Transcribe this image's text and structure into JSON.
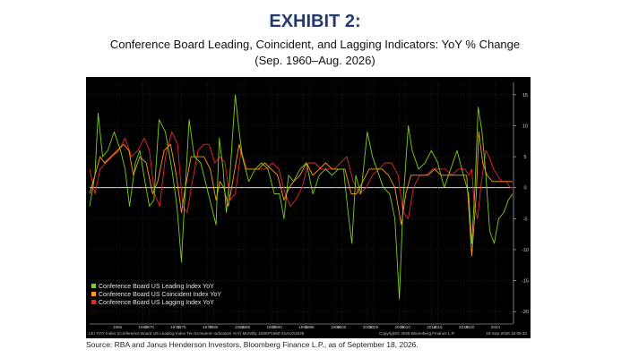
{
  "header": {
    "exhibit": "EXHIBIT 2:",
    "title": "Conference Board Leading, Coincident, and Lagging Indicators: YoY % Change",
    "subtitle": "(Sep. 1960–Aug. 2026)"
  },
  "footer": {
    "source": "Source: RBA and Janus Henderson Investors, Bloomberg Finance L.P., as of September 18, 2026.",
    "bloomberg_line": "LEI YOY Index (Conference Board US Leading Index Ten Economic Indicators YoY) Monthly 18SEP1960-31AUG2026",
    "copyright": "Copyright© 2026 Bloomberg Finance L.P.",
    "timestamp": "18-Sep-2026 16:09:32"
  },
  "colors": {
    "background": "#000000",
    "leading": "#7ccf1a",
    "coincident": "#ff9a1e",
    "lagging": "#e8252c",
    "zero_line": "#ffffff",
    "grid": "#3a3a3a",
    "axis_text": "#cfcfcf",
    "exhibit_title": "#243a6e"
  },
  "chart_data": {
    "type": "line",
    "title": "Conference Board Leading, Coincident, and Lagging Indicators: YoY % Change",
    "subtitle": "(Sep. 1960–Aug. 2026)",
    "xlabel": "",
    "ylabel": "",
    "xlim": [
      1960.67,
      2026.67
    ],
    "ylim": [
      -22,
      17
    ],
    "x_ticks": [
      "1965",
      "1969",
      "1970",
      "1974",
      "1975",
      "1979",
      "1980",
      "1984",
      "1985",
      "1989",
      "1990",
      "1994",
      "1995",
      "1999",
      "2000",
      "2004",
      "2005",
      "2009",
      "2010",
      "2014",
      "2015",
      "2019",
      "2020",
      "2024"
    ],
    "y_ticks": [
      15,
      10,
      5,
      0,
      -5,
      -10,
      -15,
      -20
    ],
    "grid": true,
    "legend_position": "bottom-left",
    "series": [
      {
        "name": "Conference Board US Leading Index YoY",
        "color": "#7ccf1a",
        "points": [
          [
            1960.67,
            -3
          ],
          [
            1961.5,
            2
          ],
          [
            1962.0,
            12
          ],
          [
            1962.7,
            5
          ],
          [
            1963.5,
            6
          ],
          [
            1964.5,
            9
          ],
          [
            1965.5,
            6
          ],
          [
            1966.2,
            3
          ],
          [
            1966.9,
            -3
          ],
          [
            1967.8,
            4
          ],
          [
            1968.5,
            6
          ],
          [
            1969.3,
            1
          ],
          [
            1970.0,
            -3
          ],
          [
            1970.7,
            -2
          ],
          [
            1971.5,
            11
          ],
          [
            1972.5,
            9
          ],
          [
            1973.5,
            3
          ],
          [
            1974.3,
            -3
          ],
          [
            1975.0,
            -12
          ],
          [
            1975.5,
            -2
          ],
          [
            1976.2,
            11
          ],
          [
            1977.0,
            5
          ],
          [
            1978.0,
            4
          ],
          [
            1979.2,
            -1
          ],
          [
            1980.4,
            -6
          ],
          [
            1980.9,
            8
          ],
          [
            1981.5,
            3
          ],
          [
            1982.0,
            -4
          ],
          [
            1982.5,
            1
          ],
          [
            1983.4,
            15
          ],
          [
            1983.9,
            10
          ],
          [
            1984.5,
            5
          ],
          [
            1985.5,
            1
          ],
          [
            1986.5,
            3
          ],
          [
            1987.5,
            4
          ],
          [
            1988.5,
            3
          ],
          [
            1989.5,
            -1
          ],
          [
            1990.3,
            -1
          ],
          [
            1991.0,
            -5
          ],
          [
            1991.7,
            2
          ],
          [
            1992.5,
            1
          ],
          [
            1993.5,
            3
          ],
          [
            1994.5,
            4
          ],
          [
            1995.5,
            -1
          ],
          [
            1996.5,
            2
          ],
          [
            1997.5,
            3
          ],
          [
            1998.5,
            2
          ],
          [
            1999.5,
            3
          ],
          [
            2000.3,
            3
          ],
          [
            2001.0,
            -4
          ],
          [
            2001.6,
            -9
          ],
          [
            2002.2,
            2
          ],
          [
            2003.0,
            -1
          ],
          [
            2004.0,
            9
          ],
          [
            2004.8,
            5
          ],
          [
            2005.5,
            3
          ],
          [
            2006.5,
            0
          ],
          [
            2007.5,
            -1
          ],
          [
            2008.3,
            -5
          ],
          [
            2009.0,
            -18
          ],
          [
            2009.6,
            -2
          ],
          [
            2010.4,
            10
          ],
          [
            2011.0,
            6
          ],
          [
            2012.0,
            3
          ],
          [
            2013.0,
            4
          ],
          [
            2014.0,
            6
          ],
          [
            2015.0,
            4
          ],
          [
            2016.0,
            0
          ],
          [
            2017.0,
            3
          ],
          [
            2018.0,
            6
          ],
          [
            2019.0,
            2
          ],
          [
            2019.8,
            -1
          ],
          [
            2020.3,
            -9
          ],
          [
            2020.8,
            0
          ],
          [
            2021.3,
            13
          ],
          [
            2021.9,
            9
          ],
          [
            2022.5,
            2
          ],
          [
            2023.1,
            -7
          ],
          [
            2023.8,
            -9
          ],
          [
            2024.5,
            -5
          ],
          [
            2025.3,
            -4
          ],
          [
            2026.0,
            -2
          ],
          [
            2026.67,
            -1
          ]
        ]
      },
      {
        "name": "Conference Board US Coincident Index YoY",
        "color": "#ff9a1e",
        "points": [
          [
            1960.67,
            -1
          ],
          [
            1961.5,
            2
          ],
          [
            1962.3,
            5
          ],
          [
            1963.0,
            4
          ],
          [
            1964.0,
            5
          ],
          [
            1965.0,
            6
          ],
          [
            1966.0,
            7
          ],
          [
            1966.8,
            6
          ],
          [
            1967.5,
            2
          ],
          [
            1968.5,
            5
          ],
          [
            1969.5,
            4
          ],
          [
            1970.5,
            -1
          ],
          [
            1971.3,
            1
          ],
          [
            1972.3,
            6
          ],
          [
            1973.3,
            7
          ],
          [
            1974.2,
            2
          ],
          [
            1975.0,
            -4
          ],
          [
            1975.6,
            0
          ],
          [
            1976.5,
            5
          ],
          [
            1977.5,
            5
          ],
          [
            1978.5,
            5
          ],
          [
            1979.5,
            3
          ],
          [
            1980.4,
            -2
          ],
          [
            1981.0,
            1
          ],
          [
            1981.6,
            0
          ],
          [
            1982.3,
            -3
          ],
          [
            1983.0,
            1
          ],
          [
            1984.0,
            7
          ],
          [
            1985.0,
            3
          ],
          [
            1986.0,
            3
          ],
          [
            1987.0,
            3
          ],
          [
            1988.0,
            4
          ],
          [
            1989.0,
            3
          ],
          [
            1990.0,
            2
          ],
          [
            1991.0,
            -2
          ],
          [
            1991.8,
            0
          ],
          [
            1992.5,
            1
          ],
          [
            1993.5,
            2
          ],
          [
            1994.5,
            4
          ],
          [
            1995.5,
            2
          ],
          [
            1996.5,
            3
          ],
          [
            1997.5,
            4
          ],
          [
            1998.5,
            3
          ],
          [
            1999.5,
            3
          ],
          [
            2000.5,
            3
          ],
          [
            2001.5,
            -1
          ],
          [
            2002.3,
            -1
          ],
          [
            2003.3,
            1
          ],
          [
            2004.3,
            3
          ],
          [
            2005.3,
            3
          ],
          [
            2006.3,
            3
          ],
          [
            2007.3,
            2
          ],
          [
            2008.3,
            0
          ],
          [
            2009.3,
            -6
          ],
          [
            2010.0,
            -1
          ],
          [
            2010.8,
            2
          ],
          [
            2011.5,
            2
          ],
          [
            2012.5,
            2
          ],
          [
            2013.5,
            2
          ],
          [
            2014.5,
            3
          ],
          [
            2015.5,
            2
          ],
          [
            2016.5,
            2
          ],
          [
            2017.5,
            2
          ],
          [
            2018.5,
            2
          ],
          [
            2019.5,
            2
          ],
          [
            2020.3,
            -11
          ],
          [
            2021.0,
            -1
          ],
          [
            2021.4,
            9
          ],
          [
            2022.0,
            4
          ],
          [
            2022.7,
            2
          ],
          [
            2023.5,
            1
          ],
          [
            2024.5,
            1
          ],
          [
            2025.5,
            1
          ],
          [
            2026.67,
            1
          ]
        ]
      },
      {
        "name": "Conference Board US Lagging Index YoY",
        "color": "#e8252c",
        "points": [
          [
            1960.67,
            3
          ],
          [
            1961.5,
            -1
          ],
          [
            1962.3,
            3
          ],
          [
            1963.2,
            4
          ],
          [
            1964.2,
            5
          ],
          [
            1965.2,
            6
          ],
          [
            1966.2,
            8
          ],
          [
            1967.2,
            5
          ],
          [
            1968.2,
            6
          ],
          [
            1969.2,
            8
          ],
          [
            1970.0,
            6
          ],
          [
            1970.8,
            -1
          ],
          [
            1971.6,
            -3
          ],
          [
            1972.5,
            5
          ],
          [
            1973.5,
            9
          ],
          [
            1974.4,
            7
          ],
          [
            1975.2,
            -3
          ],
          [
            1975.9,
            -4
          ],
          [
            1976.7,
            1
          ],
          [
            1977.6,
            6
          ],
          [
            1978.5,
            7
          ],
          [
            1979.3,
            7
          ],
          [
            1980.2,
            4
          ],
          [
            1981.0,
            5
          ],
          [
            1981.8,
            4
          ],
          [
            1982.6,
            -2
          ],
          [
            1983.4,
            -1
          ],
          [
            1984.3,
            6
          ],
          [
            1985.2,
            3
          ],
          [
            1986.2,
            3
          ],
          [
            1987.2,
            3
          ],
          [
            1988.2,
            3
          ],
          [
            1989.2,
            4
          ],
          [
            1990.2,
            3
          ],
          [
            1991.2,
            -1
          ],
          [
            1992.0,
            -3
          ],
          [
            1992.8,
            -2
          ],
          [
            1993.8,
            0
          ],
          [
            1994.8,
            4
          ],
          [
            1995.8,
            4
          ],
          [
            1996.8,
            3
          ],
          [
            1997.8,
            3
          ],
          [
            1998.8,
            3
          ],
          [
            1999.8,
            4
          ],
          [
            2000.8,
            5
          ],
          [
            2001.8,
            1
          ],
          [
            2002.8,
            -1
          ],
          [
            2003.8,
            0
          ],
          [
            2004.8,
            2
          ],
          [
            2005.8,
            3
          ],
          [
            2006.8,
            4
          ],
          [
            2007.8,
            4
          ],
          [
            2008.8,
            2
          ],
          [
            2009.6,
            -4
          ],
          [
            2010.4,
            -5
          ],
          [
            2011.2,
            0
          ],
          [
            2012.2,
            2
          ],
          [
            2013.2,
            2
          ],
          [
            2014.2,
            3
          ],
          [
            2015.2,
            3
          ],
          [
            2016.2,
            3
          ],
          [
            2017.2,
            2
          ],
          [
            2018.2,
            3
          ],
          [
            2019.2,
            3
          ],
          [
            2019.9,
            2
          ],
          [
            2020.3,
            3
          ],
          [
            2020.7,
            -3
          ],
          [
            2021.2,
            -5
          ],
          [
            2021.8,
            1
          ],
          [
            2022.5,
            6
          ],
          [
            2023.0,
            5
          ],
          [
            2023.7,
            3
          ],
          [
            2024.3,
            2
          ],
          [
            2025.0,
            1
          ],
          [
            2025.7,
            1
          ],
          [
            2026.3,
            0
          ],
          [
            2026.67,
            0
          ]
        ]
      }
    ]
  }
}
